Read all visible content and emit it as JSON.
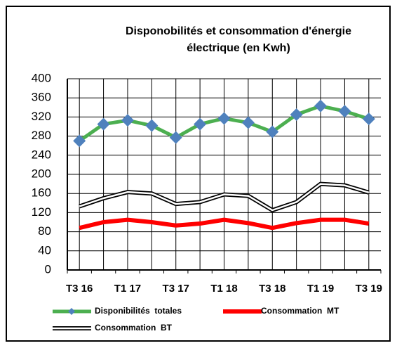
{
  "chart_data": {
    "type": "line",
    "title": [
      "Disponobilités et consommation d'énergie",
      "électrique (en Kwh)"
    ],
    "categories": [
      "T3 16",
      null,
      "T1 17",
      null,
      "T3 17",
      null,
      "T1 18",
      null,
      "T3 18",
      null,
      "T1 19",
      null,
      "T3 19"
    ],
    "series": [
      {
        "name": "Disponibilités  totales",
        "color": "#4caf50",
        "marker_color": "#4f81bd",
        "values": [
          270,
          305,
          313,
          302,
          277,
          305,
          317,
          308,
          289,
          325,
          343,
          332,
          316
        ]
      },
      {
        "name": "Consommation  MT",
        "color": "#ff0000",
        "values": [
          88,
          100,
          105,
          100,
          93,
          97,
          105,
          98,
          88,
          98,
          105,
          105,
          97
        ]
      },
      {
        "name": "Consommation  BT",
        "color": "#000000",
        "values": [
          133,
          150,
          163,
          160,
          138,
          142,
          158,
          155,
          125,
          142,
          180,
          177,
          162
        ]
      }
    ],
    "ylim": [
      0,
      400
    ],
    "yticks": [
      0,
      40,
      80,
      120,
      160,
      200,
      240,
      280,
      320,
      360,
      400
    ],
    "grid": true
  }
}
